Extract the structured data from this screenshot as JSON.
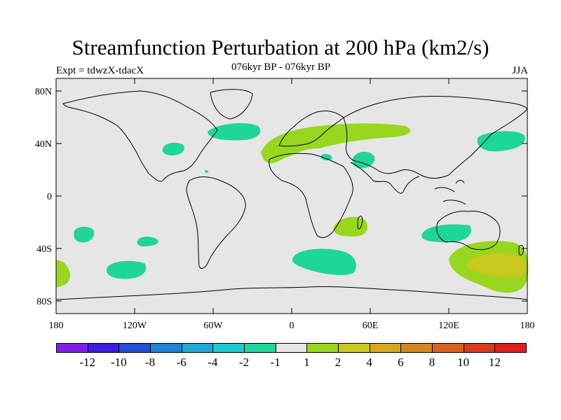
{
  "title": "Streamfunction Perturbation at 200 hPa (km2/s)",
  "subtitle": "076kyr BP - 076kyr BP",
  "expt_label": "Expt = tdwzX-tdacX",
  "season": "JJA",
  "map": {
    "projection": "cylindrical equidistant",
    "lon_range": [
      -180,
      180
    ],
    "lat_range": [
      -90,
      90
    ],
    "background_color": "#e6e6e6",
    "lat_tick_labels": [
      "80N",
      "40N",
      "0",
      "40S",
      "80S"
    ],
    "lon_tick_labels": [
      "180",
      "120W",
      "60W",
      "0",
      "60E",
      "120E",
      "180"
    ]
  },
  "colorbar": {
    "colors": [
      "#7f1fe6",
      "#3a1fe0",
      "#1f4fd6",
      "#1f83d6",
      "#1fa9d6",
      "#1fcad0",
      "#1fd69a",
      "#e6e6e6",
      "#99d61f",
      "#c8c81f",
      "#d6a81f",
      "#d6861f",
      "#d6641f",
      "#d63a1f",
      "#e01f1f"
    ],
    "labels": [
      "-12",
      "-10",
      "-8",
      "-6",
      "-4",
      "-2",
      "-1",
      "1",
      "2",
      "4",
      "6",
      "8",
      "10",
      "12"
    ]
  }
}
